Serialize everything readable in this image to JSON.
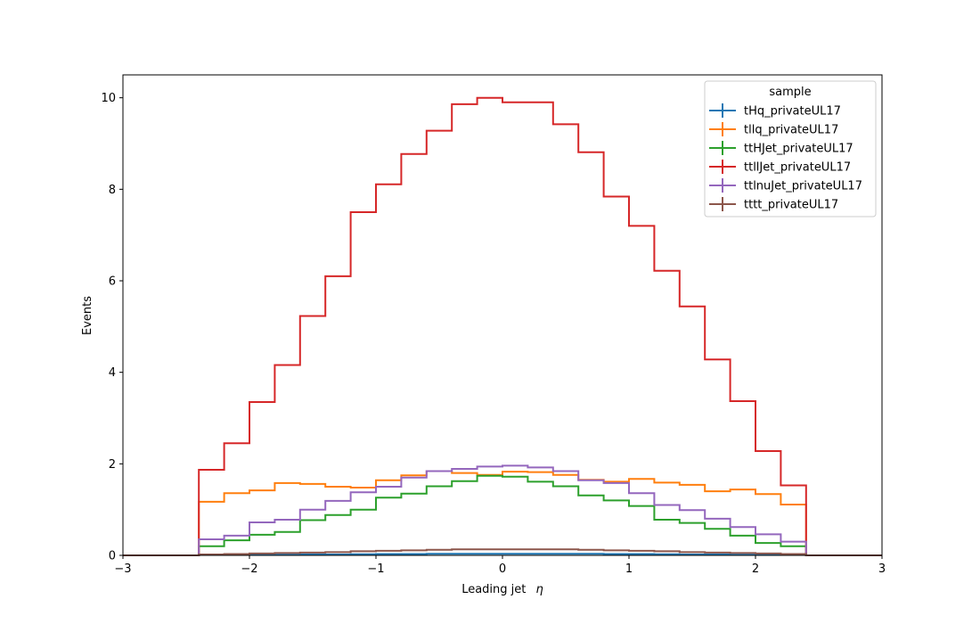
{
  "chart_data": {
    "type": "histogram-step",
    "title": "",
    "xlabel": "Leading jet",
    "xlabel_symbol": "η",
    "ylabel": "Events",
    "xlim": [
      -3,
      3
    ],
    "ylim": [
      0,
      10.5
    ],
    "x_ticks": [
      -3,
      -2,
      -1,
      0,
      1,
      2,
      3
    ],
    "x_tick_labels": [
      "−3",
      "−2",
      "−1",
      "0",
      "1",
      "2",
      "3"
    ],
    "y_ticks": [
      0,
      2,
      4,
      6,
      8,
      10
    ],
    "y_tick_labels": [
      "0",
      "2",
      "4",
      "6",
      "8",
      "10"
    ],
    "grid": false,
    "legend": {
      "title": "sample",
      "placement": "top-right"
    },
    "bin_edges": [
      -2.4,
      -2.2,
      -2.0,
      -1.8,
      -1.6,
      -1.4,
      -1.2,
      -1.0,
      -0.8,
      -0.6,
      -0.4,
      -0.2,
      0.0,
      0.2,
      0.4,
      0.6,
      0.8,
      1.0,
      1.2,
      1.4,
      1.6,
      1.8,
      2.0,
      2.2,
      2.4
    ],
    "series": [
      {
        "name": "tHq_privateUL17",
        "color": "#1f77b4",
        "values": [
          0.01,
          0.01,
          0.01,
          0.015,
          0.02,
          0.02,
          0.025,
          0.03,
          0.03,
          0.035,
          0.035,
          0.035,
          0.035,
          0.035,
          0.035,
          0.035,
          0.03,
          0.03,
          0.025,
          0.02,
          0.02,
          0.015,
          0.01,
          0.01
        ]
      },
      {
        "name": "tllq_privateUL17",
        "color": "#ff7f0e",
        "values": [
          1.17,
          1.36,
          1.42,
          1.58,
          1.56,
          1.5,
          1.48,
          1.64,
          1.75,
          1.84,
          1.8,
          1.76,
          1.83,
          1.82,
          1.76,
          1.65,
          1.61,
          1.67,
          1.59,
          1.54,
          1.4,
          1.44,
          1.34,
          1.11
        ]
      },
      {
        "name": "ttHJet_privateUL17",
        "color": "#2ca02c",
        "values": [
          0.2,
          0.33,
          0.45,
          0.51,
          0.77,
          0.88,
          1.0,
          1.26,
          1.35,
          1.51,
          1.62,
          1.74,
          1.72,
          1.61,
          1.51,
          1.31,
          1.2,
          1.08,
          0.78,
          0.71,
          0.58,
          0.43,
          0.27,
          0.2
        ]
      },
      {
        "name": "ttllJet_privateUL17",
        "color": "#d62728",
        "values": [
          1.87,
          2.45,
          3.35,
          4.16,
          5.23,
          6.1,
          7.5,
          8.11,
          8.77,
          9.28,
          9.86,
          10.0,
          9.9,
          9.9,
          9.42,
          8.81,
          7.84,
          7.2,
          6.22,
          5.44,
          4.28,
          3.37,
          2.28,
          1.53
        ]
      },
      {
        "name": "ttlnuJet_privateUL17",
        "color": "#9467bd",
        "values": [
          0.35,
          0.43,
          0.72,
          0.78,
          1.0,
          1.19,
          1.38,
          1.5,
          1.7,
          1.84,
          1.89,
          1.94,
          1.96,
          1.92,
          1.84,
          1.64,
          1.58,
          1.36,
          1.1,
          0.99,
          0.8,
          0.62,
          0.46,
          0.3
        ]
      },
      {
        "name": "tttt_privateUL17",
        "color": "#8c564b",
        "values": [
          0.02,
          0.03,
          0.04,
          0.05,
          0.06,
          0.07,
          0.09,
          0.1,
          0.11,
          0.12,
          0.13,
          0.13,
          0.13,
          0.13,
          0.13,
          0.12,
          0.11,
          0.1,
          0.09,
          0.07,
          0.06,
          0.05,
          0.04,
          0.03
        ]
      }
    ]
  }
}
